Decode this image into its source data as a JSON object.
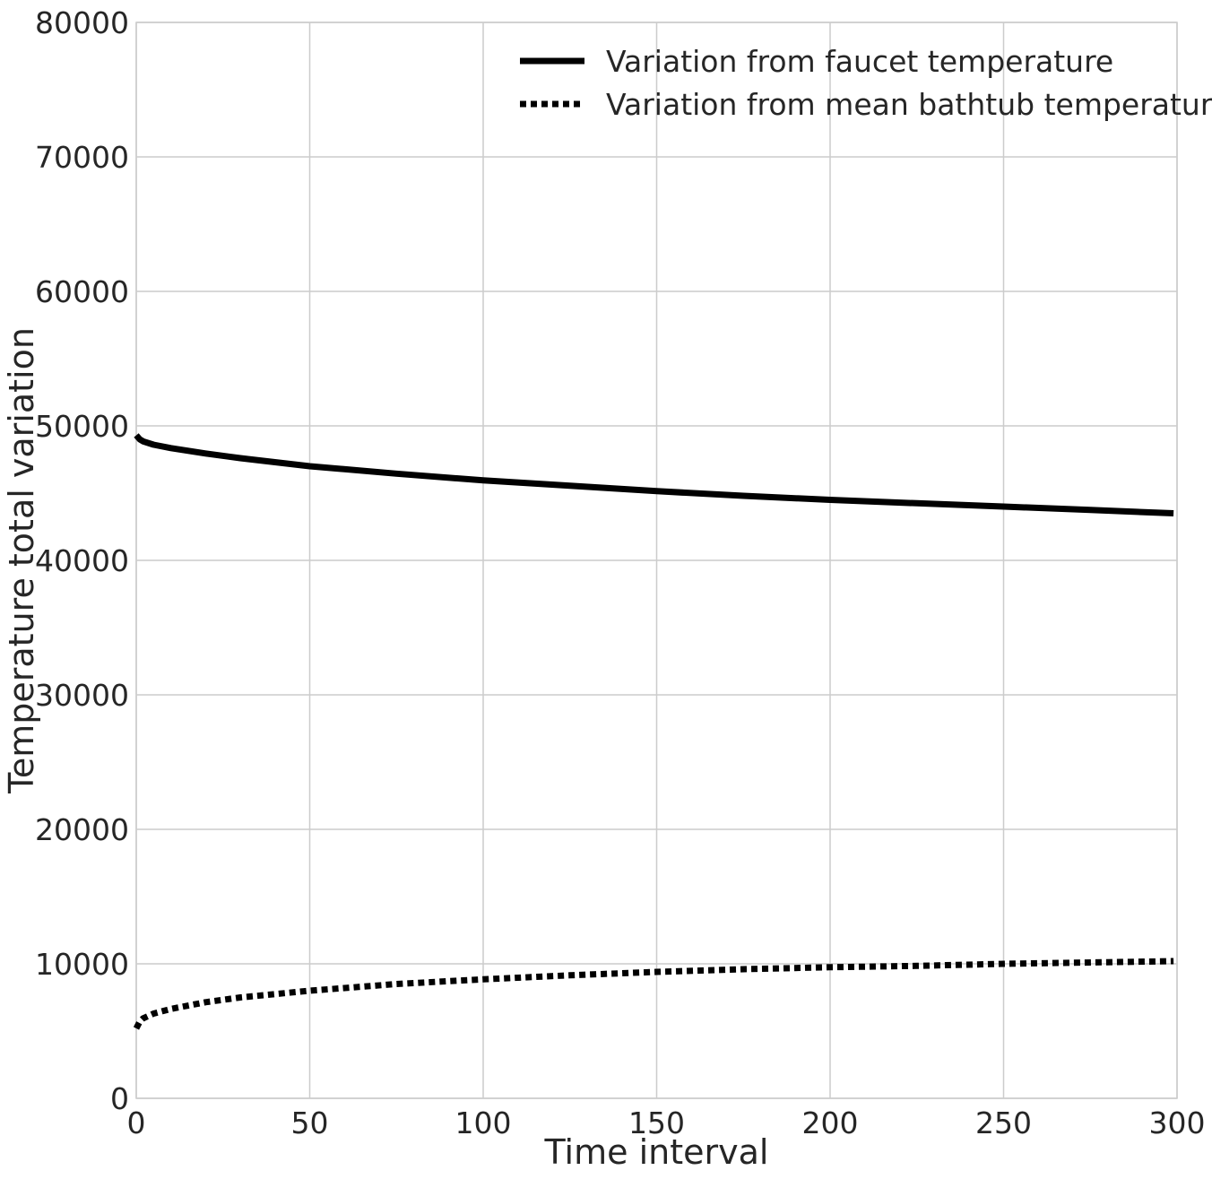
{
  "chart_data": {
    "type": "line",
    "title": "",
    "xlabel": "Time interval",
    "ylabel": "Temperature total variation",
    "xlim": [
      0,
      300
    ],
    "ylim": [
      0,
      80000
    ],
    "x_ticks": [
      "0",
      "50",
      "100",
      "150",
      "200",
      "250",
      "300"
    ],
    "y_ticks": [
      "0",
      "10000",
      "20000",
      "30000",
      "40000",
      "50000",
      "60000",
      "70000",
      "80000"
    ],
    "grid": true,
    "legend_position": "top-right",
    "series": [
      {
        "name": "Variation from faucet temperature",
        "style": "solid",
        "color": "#000000",
        "x": [
          0,
          1,
          2,
          5,
          10,
          20,
          30,
          50,
          75,
          100,
          125,
          150,
          175,
          200,
          225,
          250,
          275,
          299
        ],
        "y": [
          49300,
          49000,
          48850,
          48600,
          48350,
          47950,
          47600,
          47000,
          46450,
          45950,
          45550,
          45150,
          44800,
          44500,
          44250,
          44000,
          43750,
          43500
        ]
      },
      {
        "name": "Variation from mean bathtub temperature",
        "style": "dotted",
        "color": "#000000",
        "x": [
          0,
          1,
          2,
          5,
          10,
          20,
          30,
          50,
          75,
          100,
          125,
          150,
          175,
          200,
          225,
          250,
          275,
          299
        ],
        "y": [
          5200,
          5700,
          5950,
          6300,
          6650,
          7150,
          7500,
          8000,
          8500,
          8850,
          9150,
          9400,
          9600,
          9750,
          9850,
          10000,
          10100,
          10200
        ]
      }
    ]
  }
}
